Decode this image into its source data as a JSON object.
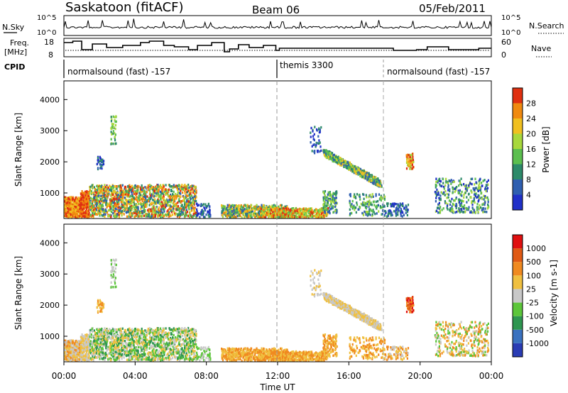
{
  "header": {
    "station": "Saskatoon (fitACF)",
    "beam": "Beam 06",
    "date": "05/Feb/2011"
  },
  "strip_labels": {
    "nsky": "N.Sky",
    "nsky_tick_top": "10^5",
    "nsky_tick_bottom": "10^0",
    "nsearch": "N.Search",
    "nsearch_tick_top": "10^5",
    "nsearch_tick_bottom": "10^0",
    "freq": "Freq.",
    "freq_unit": "[MHz]",
    "freq_tick_top": "18",
    "freq_tick_bottom": "8",
    "nave": "Nave",
    "nave_tick_top": "60",
    "nave_tick_bottom": "0",
    "cpid": "CPID"
  },
  "cpid_segments": [
    {
      "label": "normalsound (fast) -157",
      "start_hour": 0
    },
    {
      "label": "themis 3300",
      "start_hour": 12
    },
    {
      "label": "normalsound (fast) -157",
      "start_hour": 18
    }
  ],
  "chart_data": [
    {
      "type": "heatmap",
      "panel": "power",
      "ylabel": "Slant Range [km]",
      "xlabel": "",
      "xlim": [
        0,
        24
      ],
      "ylim": [
        180,
        4600
      ],
      "y_ticks": [
        1000,
        2000,
        3000,
        4000
      ],
      "colorbar_label": "Power [dB]",
      "colorbar_ticks": [
        "28",
        "24",
        "20",
        "16",
        "12",
        "8",
        "4"
      ],
      "colors": [
        "#2030c8",
        "#2f5fb0",
        "#2d8a6a",
        "#5cbf4f",
        "#a8d83c",
        "#f0c020",
        "#f08a10",
        "#e03010"
      ]
    },
    {
      "type": "heatmap",
      "panel": "velocity",
      "ylabel": "Slant Range [km]",
      "xlabel": "Time UT",
      "xlim": [
        0,
        24
      ],
      "ylim": [
        180,
        4600
      ],
      "y_ticks": [
        1000,
        2000,
        3000,
        4000
      ],
      "x_tick_labels": [
        "00:00",
        "04:00",
        "08:00",
        "12:00",
        "16:00",
        "20:00",
        "00:00"
      ],
      "colorbar_label": "Velocity [m s-1]",
      "colorbar_ticks": [
        "1000",
        "500",
        "100",
        "25",
        "-25",
        "-100",
        "-500",
        "-1000"
      ],
      "colors": [
        "#2a3cb4",
        "#3a72c0",
        "#2e9650",
        "#5cc63a",
        "#c8c8c8",
        "#f0c040",
        "#f08a20",
        "#e05a14",
        "#e01010"
      ]
    }
  ]
}
